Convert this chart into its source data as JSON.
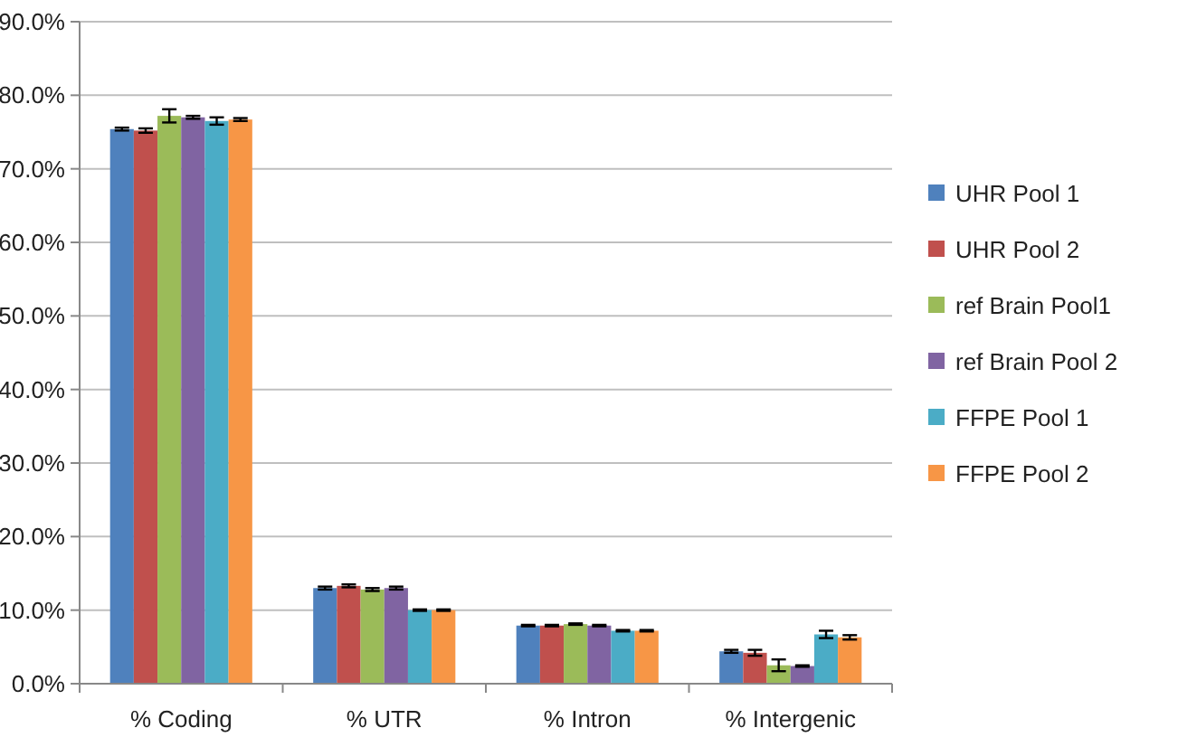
{
  "chart_data": {
    "type": "bar",
    "categories": [
      "% Coding",
      "% UTR",
      "% Intron",
      "% Intergenic"
    ],
    "series": [
      {
        "name": "UHR Pool 1",
        "color": "#4f81bd",
        "values": [
          75.4,
          13.0,
          7.9,
          4.4
        ],
        "errors": [
          0.2,
          0.2,
          0.1,
          0.2
        ]
      },
      {
        "name": "UHR Pool 2",
        "color": "#c0504d",
        "values": [
          75.2,
          13.3,
          7.9,
          4.2
        ],
        "errors": [
          0.3,
          0.2,
          0.1,
          0.4
        ]
      },
      {
        "name": "ref Brain Pool1",
        "color": "#9bbb59",
        "values": [
          77.2,
          12.8,
          8.1,
          2.5
        ],
        "errors": [
          0.9,
          0.2,
          0.1,
          0.8
        ]
      },
      {
        "name": "ref Brain Pool 2",
        "color": "#8064a2",
        "values": [
          77.0,
          13.0,
          7.9,
          2.4
        ],
        "errors": [
          0.2,
          0.2,
          0.1,
          0.1
        ]
      },
      {
        "name": "FFPE Pool 1",
        "color": "#4bacc6",
        "values": [
          76.5,
          10.0,
          7.2,
          6.7
        ],
        "errors": [
          0.5,
          0.1,
          0.1,
          0.5
        ]
      },
      {
        "name": "FFPE Pool 2",
        "color": "#f79646",
        "values": [
          76.7,
          10.0,
          7.2,
          6.3
        ],
        "errors": [
          0.2,
          0.1,
          0.1,
          0.3
        ]
      }
    ],
    "ylim": [
      0,
      90
    ],
    "yticks": [
      {
        "value": 0,
        "label": "0.0%"
      },
      {
        "value": 10,
        "label": "10.0%"
      },
      {
        "value": 20,
        "label": "20.0%"
      },
      {
        "value": 30,
        "label": "30.0%"
      },
      {
        "value": 40,
        "label": "40.0%"
      },
      {
        "value": 50,
        "label": "50.0%"
      },
      {
        "value": 60,
        "label": "60.0%"
      },
      {
        "value": 70,
        "label": "70.0%"
      },
      {
        "value": 80,
        "label": "80.0%"
      },
      {
        "value": 90,
        "label": "90.0%"
      }
    ],
    "grid": "y",
    "legend": "right"
  }
}
